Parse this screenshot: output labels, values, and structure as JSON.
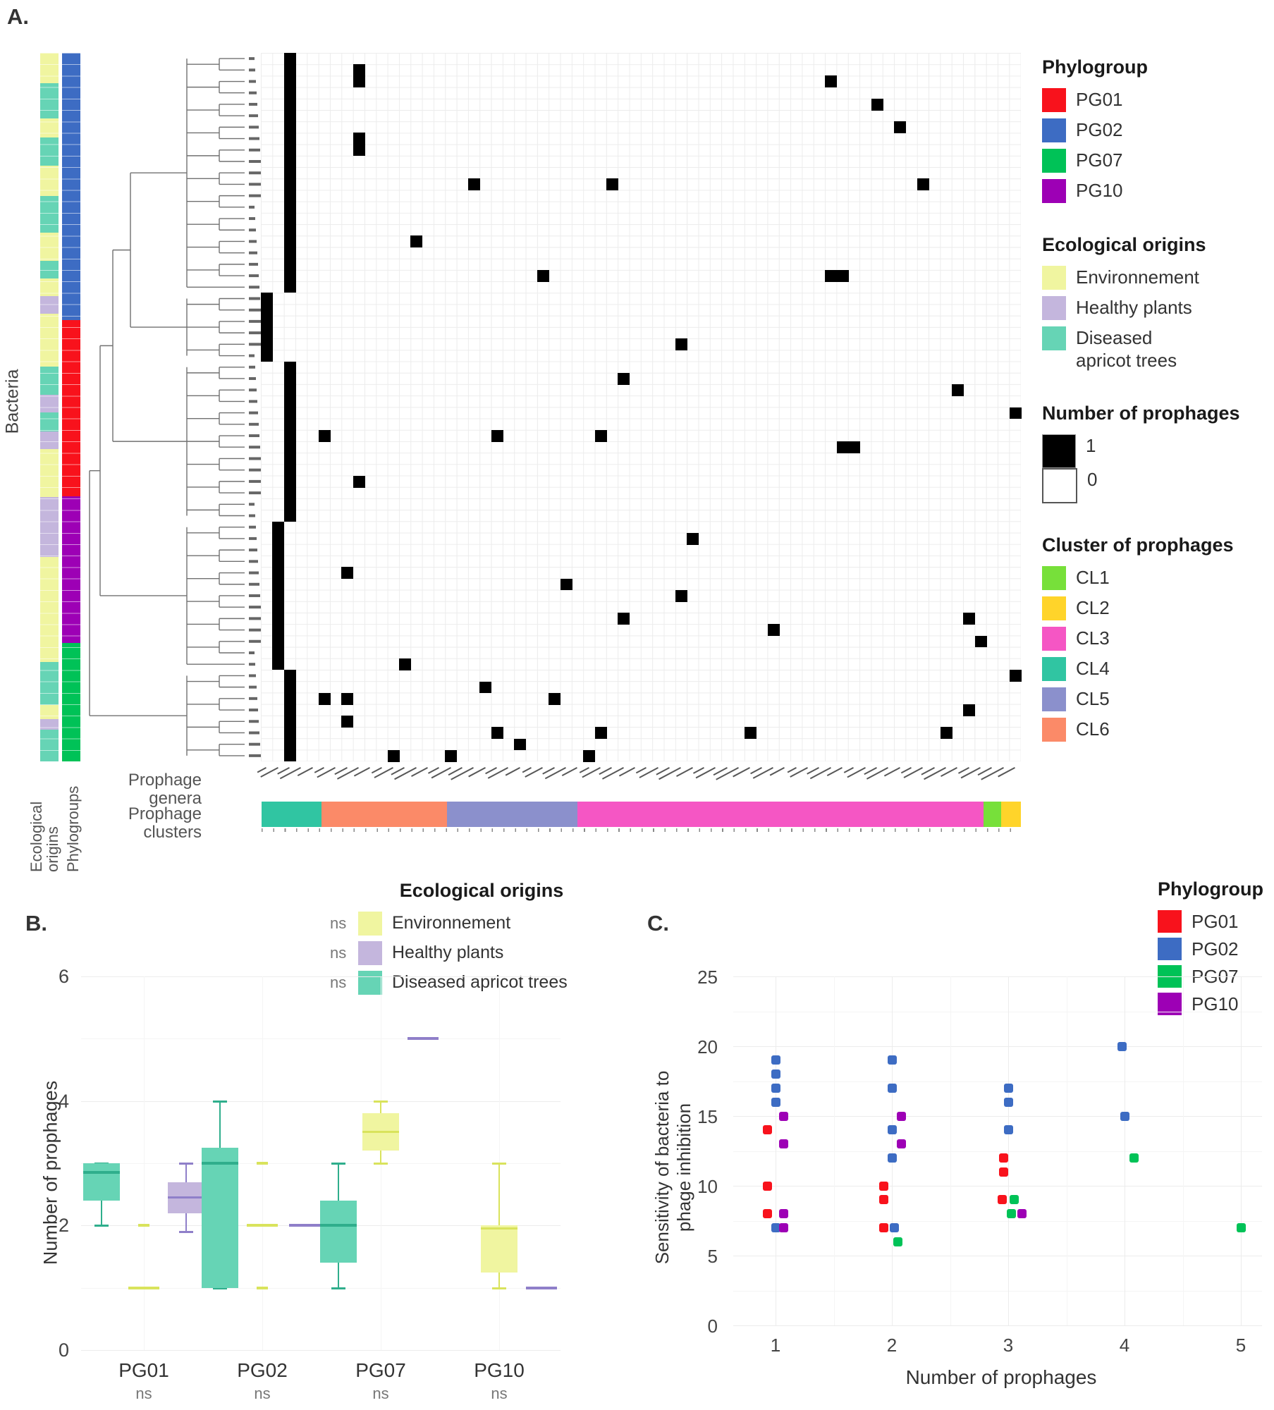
{
  "colors": {
    "PG01": "#F8121C",
    "PG02": "#3D6CC3",
    "PG07": "#00C257",
    "PG10": "#9D00B5",
    "env": "#F0F5A0",
    "healthy": "#C4B6DD",
    "diseased": "#66D4B5",
    "env_dark": "#D9E35C",
    "healthy_dark": "#8F7FC9",
    "diseased_dark": "#2FAE8C",
    "CL1": "#77E03A",
    "CL2": "#FFD42A",
    "CL3": "#F556C4",
    "CL4": "#30C5A2",
    "CL5": "#8B90CC",
    "CL6": "#FB8A68",
    "black": "#000000",
    "white": "#FFFFFF"
  },
  "chart_data": [
    {
      "id": "A",
      "type": "heatmap",
      "panel_label": "A.",
      "row_axis_label": "Bacteria",
      "row_count": 62,
      "col_count": 66,
      "cell_values": {
        "present": 1,
        "absent": 0
      },
      "black_bars": [
        [
          2,
          0,
          20
        ],
        [
          0,
          21,
          26
        ],
        [
          2,
          27,
          40
        ],
        [
          1,
          41,
          53
        ],
        [
          2,
          54,
          61
        ]
      ],
      "black_cells": [
        [
          8,
          1
        ],
        [
          8,
          2
        ],
        [
          8,
          7
        ],
        [
          8,
          8
        ],
        [
          49,
          2
        ],
        [
          53,
          4
        ],
        [
          55,
          6
        ],
        [
          18,
          11
        ],
        [
          30,
          11
        ],
        [
          57,
          11
        ],
        [
          13,
          16
        ],
        [
          24,
          19
        ],
        [
          49,
          19
        ],
        [
          50,
          19
        ],
        [
          36,
          25
        ],
        [
          31,
          28
        ],
        [
          60,
          29
        ],
        [
          65,
          31
        ],
        [
          5,
          33
        ],
        [
          20,
          33
        ],
        [
          29,
          33
        ],
        [
          50,
          34
        ],
        [
          51,
          34
        ],
        [
          8,
          37
        ],
        [
          37,
          42
        ],
        [
          7,
          45
        ],
        [
          26,
          46
        ],
        [
          36,
          47
        ],
        [
          31,
          49
        ],
        [
          61,
          49
        ],
        [
          44,
          50
        ],
        [
          62,
          51
        ],
        [
          12,
          53
        ],
        [
          65,
          54
        ],
        [
          19,
          55
        ],
        [
          5,
          56
        ],
        [
          7,
          56
        ],
        [
          25,
          56
        ],
        [
          61,
          57
        ],
        [
          7,
          58
        ],
        [
          20,
          59
        ],
        [
          29,
          59
        ],
        [
          42,
          59
        ],
        [
          59,
          59
        ],
        [
          22,
          60
        ],
        [
          11,
          61
        ],
        [
          16,
          61
        ],
        [
          28,
          61
        ]
      ],
      "clades": [
        [
          0,
          20
        ],
        [
          21,
          26
        ],
        [
          27,
          40
        ],
        [
          41,
          53
        ],
        [
          54,
          61
        ]
      ],
      "eco_segments": [
        [
          "env",
          0,
          0.043
        ],
        [
          "diseased",
          0.043,
          0.093
        ],
        [
          "env",
          0.093,
          0.119
        ],
        [
          "diseased",
          0.119,
          0.159
        ],
        [
          "env",
          0.159,
          0.202
        ],
        [
          "diseased",
          0.202,
          0.254
        ],
        [
          "env",
          0.254,
          0.294
        ],
        [
          "diseased",
          0.294,
          0.318
        ],
        [
          "env",
          0.318,
          0.343
        ],
        [
          "healthy",
          0.343,
          0.368
        ],
        [
          "env",
          0.368,
          0.443
        ],
        [
          "diseased",
          0.443,
          0.483
        ],
        [
          "healthy",
          0.483,
          0.507
        ],
        [
          "diseased",
          0.507,
          0.534
        ],
        [
          "healthy",
          0.534,
          0.559
        ],
        [
          "env",
          0.559,
          0.627
        ],
        [
          "healthy",
          0.627,
          0.711
        ],
        [
          "env",
          0.711,
          0.86
        ],
        [
          "diseased",
          0.86,
          0.92
        ],
        [
          "env",
          0.92,
          0.94
        ],
        [
          "healthy",
          0.94,
          0.955
        ],
        [
          "diseased",
          0.955,
          1
        ]
      ],
      "phylo_segments": [
        [
          "PG02",
          0,
          0.377
        ],
        [
          "PG01",
          0.377,
          0.626
        ],
        [
          "PG10",
          0.626,
          0.833
        ],
        [
          "PG07",
          0.833,
          1
        ]
      ],
      "cluster_segments": [
        [
          "CL4",
          0,
          0.079
        ],
        [
          "CL6",
          0.079,
          0.244
        ],
        [
          "CL5",
          0.244,
          0.416
        ],
        [
          "CL3",
          0.416,
          0.951
        ],
        [
          "CL1",
          0.951,
          0.974
        ],
        [
          "CL2",
          0.974,
          1
        ]
      ],
      "bottom_row_labels": {
        "genera_lines": [
          "Prophage",
          "genera"
        ],
        "clusters_lines": [
          "Prophage",
          "clusters"
        ]
      },
      "annotation_axis_labels": {
        "eco_lines": [
          "Ecological",
          "origins"
        ],
        "phylo": "Phylogroups"
      },
      "column_labels_legible": false,
      "row_labels_legible": false,
      "legends": {
        "phylogroup": {
          "title": "Phylogroup",
          "items": [
            {
              "label": "PG01",
              "color_key": "PG01"
            },
            {
              "label": "PG02",
              "color_key": "PG02"
            },
            {
              "label": "PG07",
              "color_key": "PG07"
            },
            {
              "label": "PG10",
              "color_key": "PG10"
            }
          ]
        },
        "eco": {
          "title": "Ecological origins",
          "items": [
            {
              "label": "Environnement",
              "color_key": "env"
            },
            {
              "label": "Healthy plants",
              "color_key": "healthy"
            },
            {
              "label": "Diseased apricot trees",
              "color_key": "diseased"
            }
          ]
        },
        "count": {
          "title": "Number of prophages",
          "items": [
            {
              "label": "1",
              "color_key": "black"
            },
            {
              "label": "0",
              "color_key": "white"
            }
          ]
        },
        "clusters": {
          "title": "Cluster of prophages",
          "items": [
            {
              "label": "CL1",
              "color_key": "CL1"
            },
            {
              "label": "CL2",
              "color_key": "CL2"
            },
            {
              "label": "CL3",
              "color_key": "CL3"
            },
            {
              "label": "CL4",
              "color_key": "CL4"
            },
            {
              "label": "CL5",
              "color_key": "CL5"
            },
            {
              "label": "CL6",
              "color_key": "CL6"
            }
          ]
        }
      }
    },
    {
      "id": "B",
      "type": "box",
      "panel_label": "B.",
      "y_label": "Number of prophages",
      "y_ticks": [
        0,
        2,
        4,
        6
      ],
      "ylim": [
        0,
        6
      ],
      "legend": {
        "title": "Ecological origins",
        "items": [
          {
            "sig": "ns",
            "label": "Environnement",
            "color_key": "env"
          },
          {
            "sig": "ns",
            "label": "Healthy plants",
            "color_key": "healthy"
          },
          {
            "sig": "ns",
            "label": "Diseased apricot trees",
            "color_key": "diseased"
          }
        ]
      },
      "groups": [
        {
          "name": "PG01",
          "sig": "ns",
          "boxes": [
            {
              "origin": "diseased",
              "kind": "box",
              "q1": 2.4,
              "q3": 3.0,
              "median": 2.85,
              "lo": 2.0,
              "hi": 3.0,
              "outliers": []
            },
            {
              "origin": "env",
              "kind": "flat",
              "value": 1,
              "outliers": [
                2
              ]
            },
            {
              "origin": "healthy",
              "kind": "box",
              "q1": 2.2,
              "q3": 2.7,
              "median": 2.45,
              "lo": 1.9,
              "hi": 3.0,
              "outliers": []
            }
          ]
        },
        {
          "name": "PG02",
          "sig": "ns",
          "boxes": [
            {
              "origin": "diseased",
              "kind": "box",
              "q1": 1.0,
              "q3": 3.25,
              "median": 3.0,
              "lo": 1.0,
              "hi": 4.0,
              "outliers": []
            },
            {
              "origin": "env",
              "kind": "flat",
              "value": 2,
              "outliers": [
                1,
                3
              ]
            },
            {
              "origin": "healthy",
              "kind": "flat",
              "value": 2,
              "outliers": []
            }
          ]
        },
        {
          "name": "PG07",
          "sig": "ns",
          "boxes": [
            {
              "origin": "diseased",
              "kind": "box",
              "q1": 1.4,
              "q3": 2.4,
              "median": 2.0,
              "lo": 1.0,
              "hi": 3.0,
              "outliers": []
            },
            {
              "origin": "env",
              "kind": "box",
              "q1": 3.2,
              "q3": 3.8,
              "median": 3.5,
              "lo": 3.0,
              "hi": 4.0,
              "outliers": []
            },
            {
              "origin": "healthy",
              "kind": "flat",
              "value": 5,
              "outliers": []
            }
          ]
        },
        {
          "name": "PG10",
          "sig": "ns",
          "boxes": [
            {
              "origin": "env",
              "kind": "box",
              "q1": 1.25,
              "q3": 2.0,
              "median": 1.95,
              "lo": 1.0,
              "hi": 3.0,
              "outliers": []
            },
            {
              "origin": "healthy",
              "kind": "flat",
              "value": 1,
              "outliers": []
            }
          ]
        }
      ]
    },
    {
      "id": "C",
      "type": "scatter",
      "panel_label": "C.",
      "x_label": "Number of prophages",
      "y_label_lines": [
        "Sensitivity of bacteria to",
        "phage inhibition"
      ],
      "x_ticks": [
        1,
        2,
        3,
        4,
        5
      ],
      "y_ticks": [
        0,
        5,
        10,
        15,
        20,
        25
      ],
      "xlim": [
        0.5,
        5.5
      ],
      "ylim": [
        0,
        25
      ],
      "legend": {
        "title": "Phylogroup",
        "items": [
          {
            "label": "PG01",
            "color_key": "PG01"
          },
          {
            "label": "PG02",
            "color_key": "PG02"
          },
          {
            "label": "PG07",
            "color_key": "PG07"
          },
          {
            "label": "PG10",
            "color_key": "PG10"
          }
        ]
      },
      "points": [
        [
          0.93,
          14,
          "PG01"
        ],
        [
          0.93,
          10,
          "PG01"
        ],
        [
          0.93,
          8,
          "PG01"
        ],
        [
          1.0,
          19,
          "PG02"
        ],
        [
          1.0,
          18,
          "PG02"
        ],
        [
          1.0,
          17,
          "PG02"
        ],
        [
          1.0,
          16,
          "PG02"
        ],
        [
          1.0,
          7,
          "PG02"
        ],
        [
          1.07,
          15,
          "PG10"
        ],
        [
          1.07,
          13,
          "PG10"
        ],
        [
          1.07,
          8,
          "PG10"
        ],
        [
          1.07,
          7,
          "PG10"
        ],
        [
          1.93,
          10,
          "PG01"
        ],
        [
          1.93,
          9,
          "PG01"
        ],
        [
          1.93,
          7,
          "PG01"
        ],
        [
          2.0,
          19,
          "PG02"
        ],
        [
          2.0,
          17,
          "PG02"
        ],
        [
          2.0,
          14,
          "PG02"
        ],
        [
          2.0,
          12,
          "PG02"
        ],
        [
          2.02,
          7,
          "PG02"
        ],
        [
          2.05,
          6,
          "PG07"
        ],
        [
          2.08,
          15,
          "PG10"
        ],
        [
          2.08,
          13,
          "PG10"
        ],
        [
          2.96,
          12,
          "PG01"
        ],
        [
          2.96,
          11,
          "PG01"
        ],
        [
          2.95,
          9,
          "PG01"
        ],
        [
          3.0,
          17,
          "PG02"
        ],
        [
          3.0,
          16,
          "PG02"
        ],
        [
          3.0,
          14,
          "PG02"
        ],
        [
          3.05,
          9,
          "PG07"
        ],
        [
          3.03,
          8,
          "PG07"
        ],
        [
          3.12,
          8,
          "PG10"
        ],
        [
          3.98,
          20,
          "PG02"
        ],
        [
          4.0,
          15,
          "PG02"
        ],
        [
          4.08,
          12,
          "PG07"
        ],
        [
          5.0,
          7,
          "PG07"
        ]
      ]
    }
  ]
}
